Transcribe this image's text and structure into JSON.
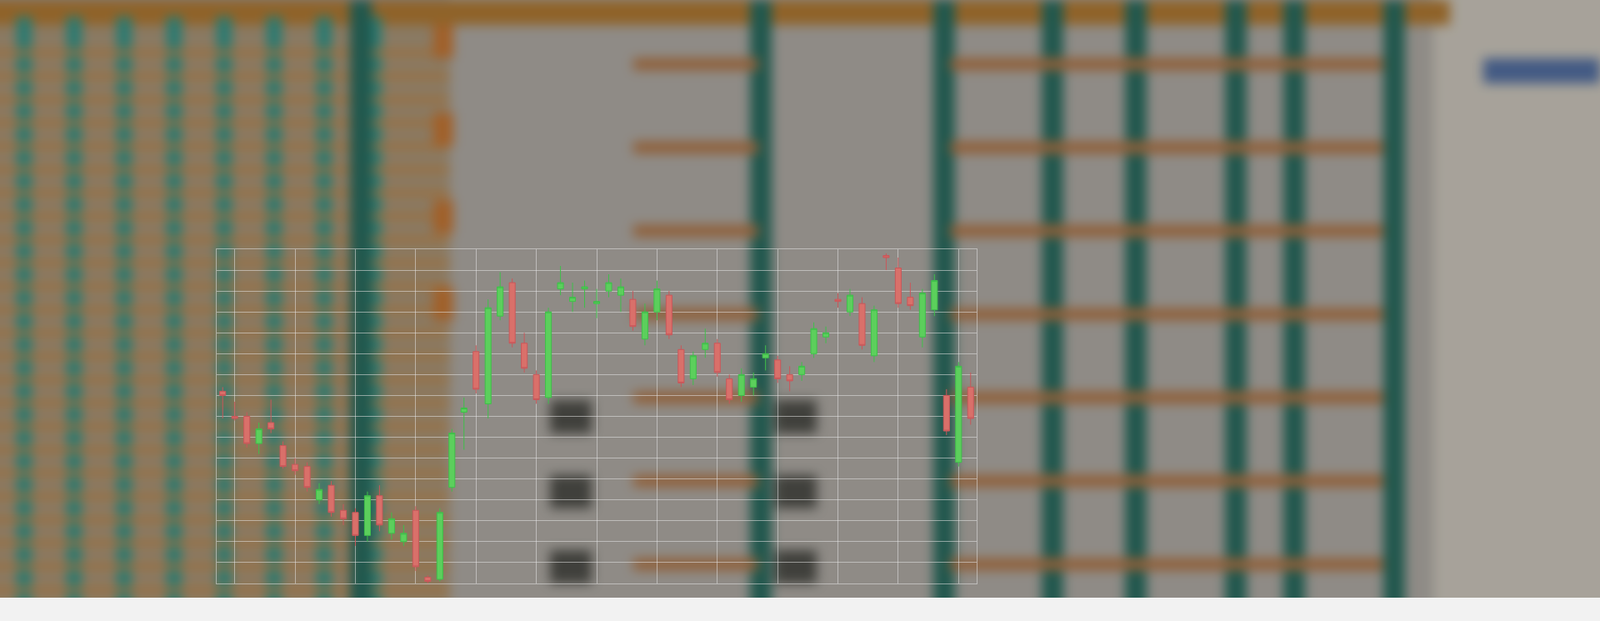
{
  "chart_data": {
    "type": "candlestick",
    "x": [
      1,
      2,
      3,
      4,
      5,
      6,
      7,
      8,
      9,
      10,
      11,
      12,
      13,
      14,
      15,
      16,
      17,
      18,
      19,
      20,
      21,
      22,
      23,
      24,
      25,
      26,
      27,
      28,
      29,
      30,
      31,
      32,
      33,
      34,
      35,
      36,
      37,
      38,
      39,
      40,
      41,
      42,
      43,
      44,
      45,
      46,
      47,
      48,
      49,
      50,
      51,
      52,
      53,
      54,
      55,
      56,
      57,
      58,
      59,
      60,
      61,
      62,
      63
    ],
    "open": [
      9.2,
      8.0,
      8.0,
      6.7,
      7.7,
      6.6,
      5.7,
      5.6,
      4.0,
      4.7,
      3.5,
      3.4,
      2.3,
      4.2,
      2.4,
      2.0,
      3.5,
      0.3,
      0.2,
      4.6,
      8.2,
      11.1,
      8.6,
      12.8,
      14.4,
      11.5,
      10.0,
      8.9,
      14.1,
      13.5,
      14.1,
      13.4,
      14.0,
      13.8,
      13.6,
      11.7,
      13.0,
      13.8,
      11.2,
      9.8,
      11.2,
      11.5,
      9.8,
      9.0,
      9.4,
      10.8,
      10.7,
      10.0,
      10.0,
      11.0,
      11.8,
      13.6,
      13.0,
      13.4,
      10.9,
      15.7,
      15.1,
      13.7,
      11.8,
      13.1,
      9.0,
      5.8,
      9.4
    ],
    "high": [
      9.4,
      8.7,
      8.2,
      7.7,
      8.8,
      6.8,
      6.0,
      5.8,
      4.8,
      4.9,
      3.8,
      3.6,
      4.4,
      4.7,
      3.4,
      2.8,
      3.7,
      0.4,
      3.6,
      7.4,
      8.9,
      11.4,
      13.6,
      14.9,
      14.6,
      12.0,
      10.2,
      13.2,
      15.2,
      14.4,
      14.5,
      14.1,
      14.8,
      14.6,
      14.0,
      13.4,
      14.5,
      14.0,
      11.4,
      11.1,
      12.2,
      11.7,
      10.0,
      10.3,
      10.1,
      11.4,
      10.9,
      10.4,
      10.6,
      12.5,
      12.3,
      13.9,
      14.1,
      13.7,
      13.3,
      15.8,
      15.6,
      14.4,
      14.1,
      14.8,
      9.3,
      10.6,
      10.1
    ],
    "low": [
      7.9,
      7.8,
      6.5,
      6.2,
      7.2,
      5.5,
      5.2,
      4.4,
      3.8,
      3.2,
      2.8,
      1.8,
      2.0,
      2.5,
      2.1,
      1.8,
      0.6,
      0.0,
      0.1,
      4.4,
      6.4,
      9.1,
      7.9,
      12.6,
      11.3,
      10.1,
      8.6,
      8.6,
      13.8,
      13.0,
      13.2,
      12.7,
      13.7,
      13.0,
      12.1,
      11.4,
      12.6,
      11.7,
      9.4,
      9.5,
      10.8,
      9.9,
      8.6,
      8.7,
      9.0,
      10.2,
      9.6,
      9.2,
      9.7,
      10.8,
      11.5,
      13.2,
      12.8,
      11.2,
      10.6,
      15.0,
      13.2,
      13.1,
      11.3,
      12.8,
      7.1,
      5.6,
      7.6
    ],
    "close": [
      9.0,
      7.9,
      6.7,
      7.4,
      7.4,
      5.6,
      5.4,
      4.6,
      4.5,
      3.4,
      3.1,
      2.3,
      4.2,
      2.8,
      3.1,
      2.4,
      0.8,
      0.1,
      3.4,
      7.2,
      8.4,
      9.3,
      13.2,
      14.2,
      11.5,
      10.3,
      8.8,
      13.0,
      14.4,
      13.7,
      14.2,
      13.5,
      14.4,
      14.2,
      12.3,
      13.0,
      14.1,
      11.9,
      9.6,
      10.9,
      11.5,
      10.1,
      8.8,
      10.0,
      9.8,
      11.0,
      9.8,
      9.7,
      10.4,
      12.2,
      12.0,
      13.5,
      13.8,
      11.4,
      13.1,
      15.6,
      13.4,
      13.3,
      13.9,
      14.5,
      7.3,
      10.4,
      7.9
    ],
    "xlim": [
      0.5,
      63.5
    ],
    "xticks": [
      2,
      7,
      12,
      17,
      22,
      27,
      32,
      37,
      42,
      47,
      52,
      57,
      62
    ],
    "ylim": [
      0,
      16
    ],
    "yticks": [
      0,
      1,
      2,
      3,
      4,
      5,
      6,
      7,
      8,
      9,
      10,
      11,
      12,
      13,
      14,
      15,
      16
    ],
    "grid": true,
    "tick_labels": false
  }
}
